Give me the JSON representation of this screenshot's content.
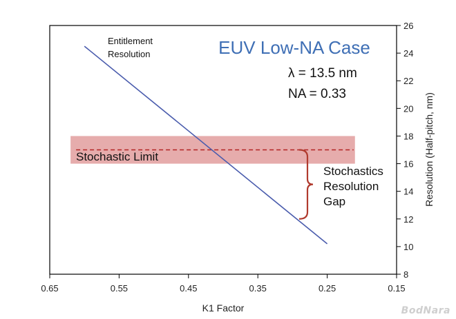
{
  "chart_data": {
    "type": "line",
    "title": "EUV Low-NA Case",
    "xlabel": "K1 Factor",
    "ylabel": "Resolution (Half-pitch, nm)",
    "xlim": [
      0.65,
      0.15
    ],
    "ylim": [
      8,
      26
    ],
    "x_reversed": true,
    "x_ticks": [
      0.65,
      0.55,
      0.45,
      0.35,
      0.25,
      0.15
    ],
    "x_tick_labels": [
      "0.65",
      "0.55",
      "0.45",
      "0.35",
      "0.25",
      "0.15"
    ],
    "y_ticks": [
      8,
      10,
      12,
      14,
      16,
      18,
      20,
      22,
      24,
      26
    ],
    "y_tick_labels": [
      "8",
      "10",
      "12",
      "14",
      "16",
      "18",
      "20",
      "22",
      "24",
      "26"
    ],
    "y_axis_side": "right",
    "grid": false,
    "series": [
      {
        "name": "Entitlement Resolution",
        "x": [
          0.6,
          0.25
        ],
        "y": [
          24.5,
          10.2
        ],
        "color": "#4a5cad"
      }
    ],
    "stochastic_band": {
      "y_min": 16.0,
      "y_max": 18.0,
      "x_from": 0.62,
      "x_to": 0.21,
      "color": "#e3a3a3"
    },
    "stochastic_limit": {
      "y": 17.0,
      "label": "Stochastic Limit",
      "color": "#b22222"
    },
    "gap_brace": {
      "y_top": 17.0,
      "y_bottom": 12.0,
      "color": "#b03a2e"
    },
    "annotations": {
      "entitlement_line1": "Entitlement",
      "entitlement_line2": "Resolution",
      "wavelength": "λ = 13.5 nm",
      "na": "NA = 0.33",
      "gap_line1": "Stochastics",
      "gap_line2": "Resolution",
      "gap_line3": "Gap"
    },
    "title_color": "#3f6fb5"
  },
  "watermark": "BodNara"
}
